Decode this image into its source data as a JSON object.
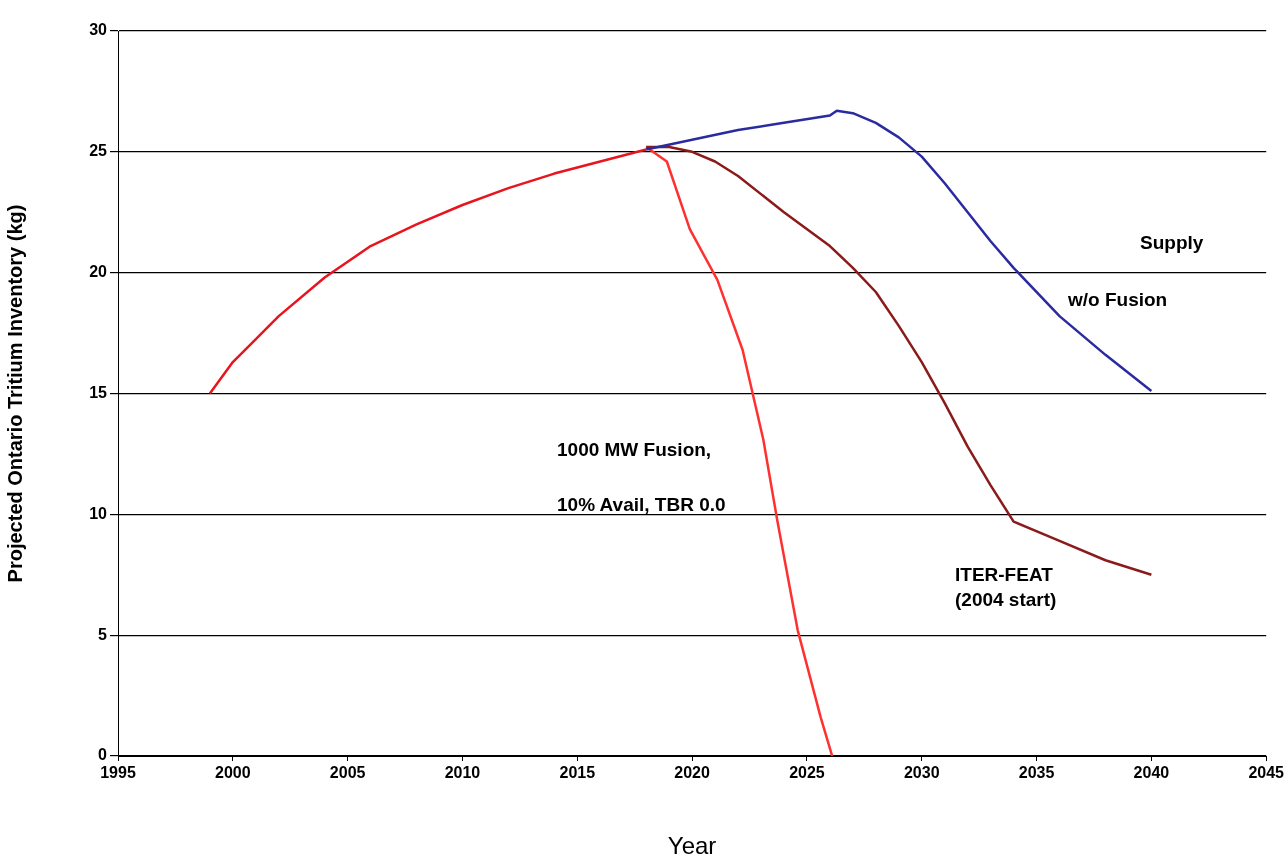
{
  "chart_data": {
    "type": "line",
    "xlabel": "Year",
    "ylabel": "Projected Ontario Tritium Inventory (kg)",
    "xlim": [
      1995,
      2045
    ],
    "xticks": [
      1995,
      2000,
      2005,
      2010,
      2015,
      2020,
      2025,
      2030,
      2035,
      2040,
      2045
    ],
    "ylim": [
      0,
      30
    ],
    "yticks": [
      0,
      5,
      10,
      15,
      20,
      25,
      30
    ],
    "grid": "y",
    "legend": false,
    "marker": "none",
    "line_style": "solid",
    "series": [
      {
        "color": "#2b2ba0",
        "x": [
          2018,
          2020,
          2022,
          2024,
          2026,
          2026.3,
          2027,
          2028,
          2029,
          2030,
          2031,
          2032,
          2033,
          2034,
          2036,
          2038,
          2040
        ],
        "values": [
          25.1,
          25.5,
          25.9,
          26.2,
          26.5,
          26.7,
          26.6,
          26.2,
          25.6,
          24.8,
          23.7,
          22.5,
          21.3,
          20.2,
          18.2,
          16.6,
          15.1
        ]
      },
      {
        "color": "#8b1a1a",
        "x": [
          2018,
          2019,
          2020,
          2021,
          2022,
          2024,
          2026,
          2027,
          2028,
          2029,
          2030,
          2031,
          2032,
          2033,
          2034,
          2036,
          2038,
          2040
        ],
        "values": [
          25.2,
          25.2,
          25.0,
          24.6,
          24.0,
          22.5,
          21.1,
          20.2,
          19.2,
          17.8,
          16.3,
          14.6,
          12.8,
          11.2,
          9.7,
          8.9,
          8.1,
          7.5
        ]
      },
      {
        "color": "#ff3030",
        "x": [
          2018,
          2018.9,
          2019.9,
          2021.1,
          2022.2,
          2023.1,
          2023.7,
          2024.6,
          2025.6,
          2026.1
        ],
        "values": [
          25.2,
          24.6,
          21.8,
          19.7,
          16.8,
          13.1,
          9.8,
          5.2,
          1.6,
          0
        ]
      },
      {
        "color": "#e8141e",
        "x": [
          1999,
          2000,
          2002,
          2004,
          2006,
          2008,
          2010,
          2012,
          2014,
          2016,
          2018
        ],
        "values": [
          15,
          16.3,
          18.2,
          19.8,
          21.1,
          22.0,
          22.8,
          23.5,
          24.1,
          24.6,
          25.1
        ]
      }
    ],
    "annotations": [
      "1000 MW Fusion,",
      "10% Avail, TBR 0.0",
      "Supply",
      "w/o Fusion",
      "ITER-FEAT",
      "(2004 start)"
    ]
  }
}
